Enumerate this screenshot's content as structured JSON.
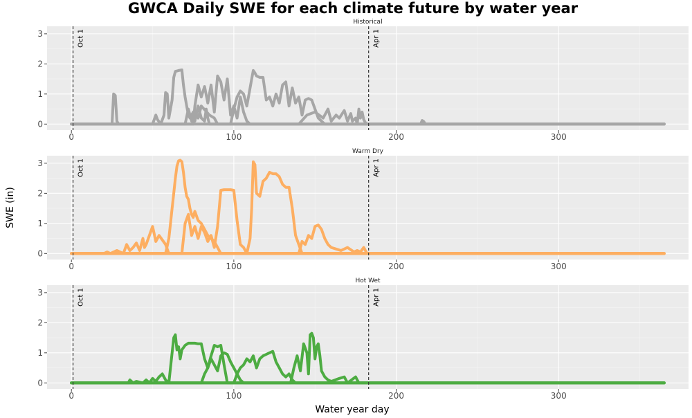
{
  "chart_data": {
    "type": "line",
    "title": "GWCA Daily SWE for each climate future by water year",
    "xlabel": "Water year day",
    "ylabel": "SWE (in)",
    "xlim": [
      -15,
      380
    ],
    "ylim": [
      -0.2,
      3.25
    ],
    "x_ticks": [
      0,
      100,
      200,
      300
    ],
    "y_ticks": [
      0,
      1,
      2,
      3
    ],
    "grid": true,
    "legend": "none",
    "vlines": [
      {
        "x": 1,
        "label": "Oct 1"
      },
      {
        "x": 183,
        "label": "Apr 1"
      }
    ],
    "panels": [
      {
        "title": "Historical",
        "color": "#a6a6a6",
        "series": [
          {
            "x": [
              0,
              25,
              26,
              27,
              28,
              29,
              30,
              50,
              52,
              53,
              55,
              70,
              72,
              74,
              76,
              78,
              80,
              85,
              88,
              90,
              100,
              200,
              215,
              216,
              217,
              218,
              365
            ],
            "y": [
              0,
              0,
              1.0,
              0.95,
              0.1,
              0,
              0,
              0,
              0.3,
              0.15,
              0,
              0,
              0.5,
              0.1,
              0.4,
              0.2,
              0.6,
              0.3,
              0.2,
              0,
              0,
              0,
              0,
              0.12,
              0.08,
              0,
              0
            ]
          },
          {
            "x": [
              0,
              55,
              57,
              58,
              59,
              60,
              62,
              63,
              64,
              66,
              68,
              69,
              70,
              71,
              72,
              73,
              75,
              76,
              78,
              80,
              82,
              83,
              84,
              85,
              86,
              365
            ],
            "y": [
              0,
              0,
              0.3,
              1.05,
              1.0,
              0.2,
              0.8,
              1.55,
              1.75,
              1.78,
              1.8,
              1.3,
              0.9,
              0.6,
              0.3,
              0.2,
              0.4,
              0.1,
              0.6,
              0.2,
              0.1,
              0.5,
              0.2,
              0,
              0,
              0
            ]
          },
          {
            "x": [
              0,
              75,
              76,
              78,
              80,
              82,
              84,
              86,
              88,
              90,
              92,
              94,
              96,
              98,
              100,
              102,
              104,
              106,
              108,
              110,
              365
            ],
            "y": [
              0,
              0,
              0.6,
              1.3,
              0.9,
              1.25,
              0.7,
              1.3,
              0.4,
              1.6,
              1.4,
              0.8,
              1.5,
              0.3,
              0.6,
              0.2,
              0.9,
              0.4,
              0.1,
              0,
              0
            ]
          },
          {
            "x": [
              0,
              98,
              100,
              102,
              104,
              106,
              108,
              110,
              111,
              112,
              113,
              114,
              116,
              118,
              120,
              122,
              124,
              126,
              128,
              130,
              132,
              134,
              136,
              138,
              140,
              142,
              144,
              146,
              148,
              150,
              152,
              154,
              156,
              365
            ],
            "y": [
              0,
              0,
              0.5,
              0.9,
              1.1,
              1.0,
              0.6,
              1.2,
              1.5,
              1.78,
              1.7,
              1.6,
              1.55,
              1.55,
              0.8,
              0.9,
              0.6,
              1.0,
              0.7,
              1.3,
              1.4,
              0.6,
              1.2,
              0.7,
              0.9,
              0.3,
              0.8,
              0.85,
              0.8,
              0.5,
              0.2,
              0.1,
              0,
              0
            ]
          },
          {
            "x": [
              0,
              140,
              145,
              150,
              155,
              158,
              160,
              163,
              165,
              168,
              170,
              172,
              173,
              175,
              176,
              177,
              178,
              179,
              180,
              181,
              182,
              365
            ],
            "y": [
              0,
              0,
              0.3,
              0.4,
              0.2,
              0.5,
              0.1,
              0.3,
              0.2,
              0.45,
              0.1,
              0.35,
              0.1,
              0.2,
              0,
              0.5,
              0.2,
              0.4,
              0.15,
              0.05,
              0,
              0
            ]
          }
        ]
      },
      {
        "title": "Warm Dry",
        "color": "#fdae61",
        "series": [
          {
            "x": [
              0,
              20,
              22,
              24,
              28,
              32,
              34,
              36,
              38,
              40,
              42,
              44,
              45,
              46,
              48,
              50,
              52,
              54,
              58,
              60,
              365
            ],
            "y": [
              0,
              0,
              0.05,
              0,
              0.1,
              0,
              0.3,
              0.1,
              0.2,
              0.35,
              0.1,
              0.5,
              0.2,
              0.3,
              0.6,
              0.9,
              0.4,
              0.6,
              0.3,
              0,
              0
            ]
          },
          {
            "x": [
              0,
              58,
              60,
              61,
              62,
              63,
              64,
              65,
              66,
              67,
              68,
              69,
              70,
              71,
              72,
              73,
              74,
              75,
              76,
              78,
              80,
              82,
              84,
              86,
              88,
              90,
              92,
              365
            ],
            "y": [
              0,
              0,
              0.5,
              1.0,
              1.5,
              2.0,
              2.5,
              2.9,
              3.08,
              3.1,
              3.05,
              2.7,
              2.2,
              1.9,
              1.8,
              1.5,
              1.3,
              1.2,
              1.4,
              1.1,
              1.0,
              0.8,
              0.6,
              0.5,
              0.4,
              0.2,
              0,
              0
            ]
          },
          {
            "x": [
              0,
              68,
              70,
              72,
              74,
              76,
              78,
              80,
              82,
              84,
              86,
              88,
              90,
              92,
              94,
              96,
              98,
              100,
              102,
              104,
              106,
              108,
              365
            ],
            "y": [
              0,
              0,
              1.0,
              1.3,
              0.6,
              0.9,
              0.5,
              0.9,
              0.7,
              0.4,
              0.6,
              0.2,
              0.9,
              2.1,
              2.12,
              2.12,
              2.12,
              2.1,
              1.1,
              0.3,
              0.2,
              0,
              0
            ]
          },
          {
            "x": [
              0,
              108,
              110,
              111,
              112,
              113,
              114,
              116,
              118,
              120,
              122,
              124,
              126,
              128,
              130,
              132,
              134,
              136,
              138,
              140,
              142,
              365
            ],
            "y": [
              0,
              0,
              0.5,
              1.5,
              3.05,
              2.95,
              2.0,
              1.9,
              2.4,
              2.5,
              2.7,
              2.65,
              2.65,
              2.55,
              2.3,
              2.2,
              2.2,
              1.5,
              0.6,
              0.3,
              0,
              0
            ]
          },
          {
            "x": [
              0,
              140,
              142,
              144,
              146,
              148,
              150,
              152,
              154,
              156,
              158,
              160,
              163,
              166,
              170,
              174,
              176,
              178,
              180,
              181,
              182,
              365
            ],
            "y": [
              0,
              0,
              0.4,
              0.3,
              0.6,
              0.5,
              0.9,
              0.95,
              0.8,
              0.5,
              0.3,
              0.2,
              0.15,
              0.1,
              0.2,
              0.05,
              0.1,
              0.05,
              0.2,
              0.1,
              0,
              0
            ]
          }
        ]
      },
      {
        "title": "Hot Wet",
        "color": "#4dac42",
        "series": [
          {
            "x": [
              0,
              35,
              36,
              38,
              40,
              44,
              46,
              48,
              50,
              52,
              54,
              56,
              58,
              60,
              365
            ],
            "y": [
              0,
              0,
              0.1,
              0,
              0.05,
              0,
              0.1,
              0,
              0.15,
              0.05,
              0.2,
              0.3,
              0.1,
              0,
              0
            ]
          },
          {
            "x": [
              0,
              60,
              62,
              63,
              64,
              65,
              66,
              67,
              68,
              70,
              72,
              74,
              76,
              78,
              80,
              82,
              84,
              86,
              88,
              90,
              92,
              94,
              96,
              365
            ],
            "y": [
              0,
              0,
              1.0,
              1.5,
              1.6,
              1.1,
              1.2,
              0.8,
              1.1,
              1.25,
              1.32,
              1.32,
              1.32,
              1.3,
              1.3,
              0.8,
              0.5,
              0.9,
              1.25,
              1.2,
              1.25,
              0.6,
              0,
              0
            ]
          },
          {
            "x": [
              0,
              80,
              82,
              84,
              86,
              88,
              90,
              92,
              94,
              96,
              98,
              100,
              102,
              104,
              106,
              365
            ],
            "y": [
              0,
              0,
              0.3,
              0.5,
              0.8,
              0.6,
              0.4,
              0.9,
              1.0,
              0.95,
              0.7,
              0.5,
              0.3,
              0.1,
              0,
              0
            ]
          },
          {
            "x": [
              0,
              100,
              102,
              104,
              106,
              108,
              110,
              112,
              114,
              116,
              118,
              120,
              122,
              124,
              126,
              128,
              130,
              132,
              134,
              136,
              138,
              365
            ],
            "y": [
              0,
              0,
              0.3,
              0.5,
              0.6,
              0.8,
              0.7,
              0.9,
              0.5,
              0.8,
              0.9,
              0.95,
              1.0,
              1.05,
              0.7,
              0.5,
              0.3,
              0.2,
              0.3,
              0.1,
              0,
              0
            ]
          },
          {
            "x": [
              0,
              135,
              137,
              139,
              141,
              143,
              145,
              146,
              147,
              148,
              149,
              150,
              151,
              152,
              153,
              154,
              156,
              158,
              160,
              165,
              168,
              170,
              175,
              176,
              177,
              365
            ],
            "y": [
              0,
              0,
              0.5,
              0.9,
              0.4,
              1.3,
              1.0,
              0.3,
              1.6,
              1.65,
              1.5,
              0.8,
              1.2,
              1.3,
              0.9,
              0.4,
              0.2,
              0.1,
              0.05,
              0.15,
              0.2,
              0,
              0.2,
              0.1,
              0,
              0
            ]
          }
        ]
      }
    ]
  }
}
